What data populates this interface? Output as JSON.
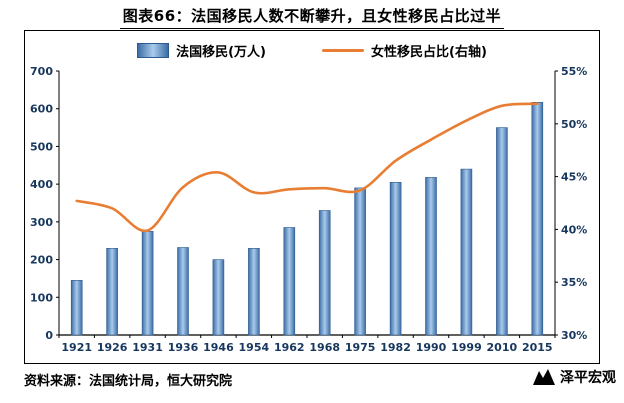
{
  "title": "图表66：法国移民人数不断攀升，且女性移民占比过半",
  "source_note": "资料来源：法国统计局，恒大研究院",
  "brand": {
    "name": "泽平宏观"
  },
  "colors": {
    "bar_edge": "#3C6DA6",
    "bar_center": "#A9CBEC",
    "bar_border": "#2E5B8F",
    "line": "#E87E33",
    "axis_label": "#17375E",
    "axis_line": "#000000"
  },
  "chart_data": {
    "type": "bar+line combo",
    "title": "图表66：法国移民人数不断攀升，且女性移民占比过半",
    "categories": [
      "1921",
      "1926",
      "1931",
      "1936",
      "1946",
      "1954",
      "1962",
      "1968",
      "1975",
      "1982",
      "1990",
      "1999",
      "2010",
      "2015"
    ],
    "series": [
      {
        "name": "法国移民(万人)",
        "type": "bar",
        "axis": "left",
        "values": [
          145,
          230,
          275,
          232,
          200,
          230,
          285,
          330,
          390,
          405,
          418,
          440,
          550,
          617
        ]
      },
      {
        "name": "女性移民占比(右轴)",
        "type": "line",
        "axis": "right",
        "values": [
          42.7,
          42.0,
          39.9,
          44.0,
          45.4,
          43.5,
          43.8,
          43.9,
          43.7,
          46.5,
          48.5,
          50.3,
          51.7,
          51.9
        ]
      }
    ],
    "left_axis": {
      "min": 0,
      "max": 700,
      "step": 100
    },
    "right_axis": {
      "min": 30,
      "max": 55,
      "step": 5,
      "suffix": "%"
    },
    "grid": false,
    "legend_position": "top"
  }
}
